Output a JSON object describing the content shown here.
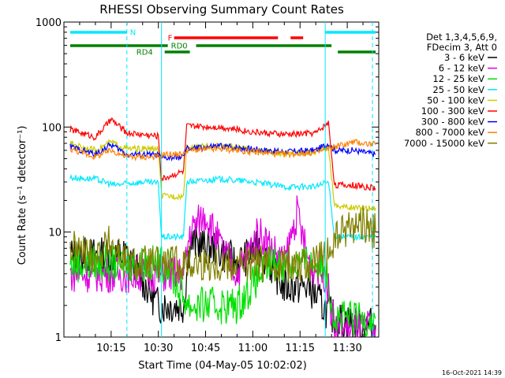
{
  "chart_data": {
    "type": "line",
    "title": "RHESSI Observing Summary Count Rates",
    "xlabel": "Start Time (04-May-05 10:02:02)",
    "ylabel": "Count Rate (s⁻¹ detector⁻¹)",
    "yscale": "log",
    "ylim": [
      1,
      1000
    ],
    "xlim_minutes": [
      "10:02",
      "11:42"
    ],
    "xticks": [
      {
        "label": "10:15",
        "t": 15
      },
      {
        "label": "10:30",
        "t": 30
      },
      {
        "label": "10:45",
        "t": 45
      },
      {
        "label": "11:00",
        "t": 60
      },
      {
        "label": "11:15",
        "t": 75
      },
      {
        "label": "11:30",
        "t": 90
      }
    ],
    "yticks": [
      {
        "label": "1",
        "v": 1
      },
      {
        "label": "10",
        "v": 10
      },
      {
        "label": "100",
        "v": 100
      },
      {
        "label": "1000",
        "v": 1000
      }
    ],
    "legend_header": [
      "Det 1,3,4,5,6,9,",
      "FDecim 3, Att 0"
    ],
    "series": [
      {
        "name": "3 - 6 keV",
        "color": "#000000",
        "points": [
          [
            2,
            6
          ],
          [
            20,
            6
          ],
          [
            30,
            2
          ],
          [
            38,
            2
          ],
          [
            40,
            8
          ],
          [
            48,
            7
          ],
          [
            55,
            5
          ],
          [
            62,
            7
          ],
          [
            70,
            3
          ],
          [
            78,
            3
          ],
          [
            82,
            2
          ],
          [
            86,
            1.5
          ],
          [
            95,
            1.3
          ],
          [
            99,
            1.3
          ]
        ]
      },
      {
        "name": "6 - 12 keV",
        "color": "#e000e0",
        "points": [
          [
            2,
            4
          ],
          [
            10,
            4
          ],
          [
            16,
            4
          ],
          [
            20,
            4
          ],
          [
            30,
            4
          ],
          [
            38,
            4
          ],
          [
            40,
            10
          ],
          [
            45,
            15
          ],
          [
            50,
            7
          ],
          [
            55,
            4
          ],
          [
            62,
            10
          ],
          [
            70,
            5
          ],
          [
            74,
            15
          ],
          [
            78,
            5
          ],
          [
            83,
            4
          ],
          [
            86,
            1.2
          ],
          [
            95,
            1.2
          ],
          [
            99,
            1.2
          ]
        ]
      },
      {
        "name": "12 - 25 keV",
        "color": "#00e000",
        "points": [
          [
            2,
            5
          ],
          [
            30,
            5
          ],
          [
            33,
            5
          ],
          [
            36,
            3
          ],
          [
            40,
            2
          ],
          [
            48,
            2
          ],
          [
            55,
            2
          ],
          [
            65,
            5
          ],
          [
            80,
            5
          ],
          [
            83,
            5
          ],
          [
            86,
            1.5
          ],
          [
            95,
            1.5
          ],
          [
            99,
            1.5
          ]
        ]
      },
      {
        "name": "25 - 50 keV",
        "color": "#00e8ff",
        "points": [
          [
            2,
            33
          ],
          [
            10,
            32
          ],
          [
            16,
            28
          ],
          [
            20,
            29
          ],
          [
            25,
            30
          ],
          [
            30,
            29
          ],
          [
            31,
            9
          ],
          [
            38,
            9
          ],
          [
            39,
            30
          ],
          [
            50,
            32
          ],
          [
            60,
            30
          ],
          [
            70,
            27
          ],
          [
            80,
            27
          ],
          [
            84,
            30
          ],
          [
            86,
            9
          ],
          [
            92,
            9
          ],
          [
            99,
            9
          ]
        ]
      },
      {
        "name": "50 - 100 keV",
        "color": "#cccc00",
        "points": [
          [
            2,
            70
          ],
          [
            10,
            60
          ],
          [
            15,
            72
          ],
          [
            20,
            62
          ],
          [
            25,
            62
          ],
          [
            30,
            62
          ],
          [
            31,
            22
          ],
          [
            38,
            22
          ],
          [
            39,
            63
          ],
          [
            50,
            67
          ],
          [
            60,
            60
          ],
          [
            70,
            56
          ],
          [
            80,
            58
          ],
          [
            84,
            65
          ],
          [
            86,
            18
          ],
          [
            92,
            17
          ],
          [
            99,
            17
          ]
        ]
      },
      {
        "name": "100 - 300 keV",
        "color": "#ff0000",
        "points": [
          [
            2,
            95
          ],
          [
            10,
            80
          ],
          [
            15,
            118
          ],
          [
            20,
            88
          ],
          [
            25,
            85
          ],
          [
            30,
            82
          ],
          [
            31,
            32
          ],
          [
            38,
            38
          ],
          [
            39,
            102
          ],
          [
            50,
            100
          ],
          [
            60,
            90
          ],
          [
            70,
            85
          ],
          [
            80,
            88
          ],
          [
            84,
            110
          ],
          [
            86,
            28
          ],
          [
            92,
            28
          ],
          [
            99,
            26
          ]
        ]
      },
      {
        "name": "300 - 800 keV",
        "color": "#0000ff",
        "points": [
          [
            2,
            65
          ],
          [
            10,
            55
          ],
          [
            15,
            68
          ],
          [
            20,
            55
          ],
          [
            25,
            55
          ],
          [
            30,
            54
          ],
          [
            31,
            50
          ],
          [
            38,
            52
          ],
          [
            39,
            62
          ],
          [
            50,
            66
          ],
          [
            60,
            62
          ],
          [
            70,
            58
          ],
          [
            80,
            60
          ],
          [
            84,
            70
          ],
          [
            86,
            60
          ],
          [
            92,
            60
          ],
          [
            99,
            55
          ]
        ]
      },
      {
        "name": "800 - 7000 keV",
        "color": "#ff8000",
        "points": [
          [
            2,
            62
          ],
          [
            10,
            52
          ],
          [
            15,
            60
          ],
          [
            20,
            52
          ],
          [
            25,
            52
          ],
          [
            30,
            52
          ],
          [
            31,
            55
          ],
          [
            38,
            55
          ],
          [
            39,
            60
          ],
          [
            50,
            62
          ],
          [
            60,
            58
          ],
          [
            70,
            55
          ],
          [
            80,
            57
          ],
          [
            84,
            62
          ],
          [
            86,
            65
          ],
          [
            92,
            72
          ],
          [
            99,
            68
          ]
        ]
      },
      {
        "name": "7000 - 15000 keV",
        "color": "#808000",
        "points": [
          [
            2,
            7
          ],
          [
            10,
            6
          ],
          [
            15,
            8
          ],
          [
            20,
            5
          ],
          [
            30,
            5
          ],
          [
            38,
            5
          ],
          [
            40,
            5
          ],
          [
            50,
            5
          ],
          [
            60,
            5
          ],
          [
            70,
            5
          ],
          [
            80,
            5
          ],
          [
            84,
            6
          ],
          [
            86,
            8
          ],
          [
            90,
            11
          ],
          [
            95,
            12
          ],
          [
            99,
            10
          ]
        ]
      }
    ],
    "state_bars": [
      {
        "label": "N",
        "color": "#00e8ff",
        "segments": [
          [
            2,
            20
          ]
        ],
        "row": 1
      },
      {
        "label": "N",
        "color": "#00e8ff",
        "segments": [
          [
            83,
            99
          ]
        ],
        "row": 1
      },
      {
        "label": "F",
        "color": "#ff0000",
        "segments": [
          [
            35,
            68
          ],
          [
            72,
            76
          ]
        ],
        "row": 2
      },
      {
        "label": "RD0",
        "color": "#008000",
        "segments": [
          [
            2,
            33
          ],
          [
            42,
            85
          ]
        ],
        "row": 3
      },
      {
        "label": "RD4",
        "color": "#008000",
        "segments": [
          [
            32,
            40
          ],
          [
            87,
            99
          ]
        ],
        "row": 4
      }
    ],
    "vlines_t": [
      20,
      31,
      83,
      98
    ],
    "grid": false,
    "legend_placement": "right",
    "footnote": "16-Oct-2021 14:39"
  }
}
